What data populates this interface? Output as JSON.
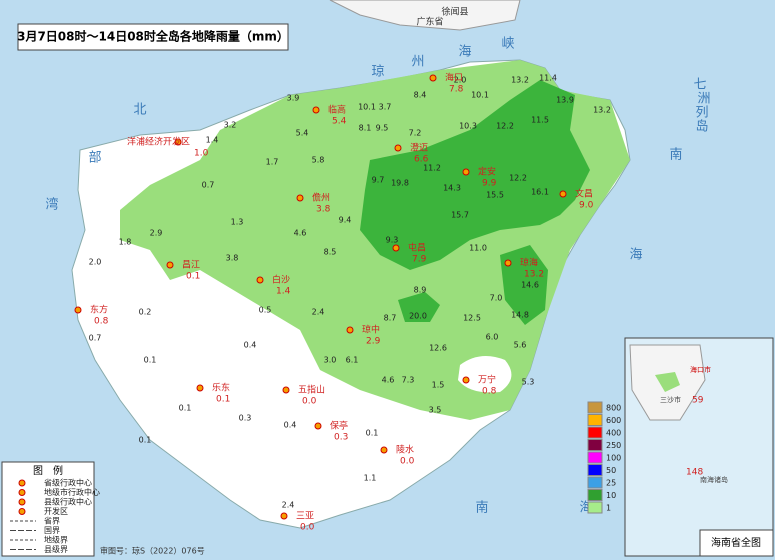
{
  "title": "3月7日08时～14日08时全岛各地降雨量（mm）",
  "top_labels": [
    "徐闻县",
    "广东省"
  ],
  "seas": [
    "北",
    "部",
    "湾",
    "琼",
    "州",
    "海",
    "峡",
    "南",
    "海",
    "南",
    "海",
    "七",
    "洲",
    "列",
    "岛"
  ],
  "cities": [
    {
      "name": "海口",
      "value": "7.8"
    },
    {
      "name": "临高",
      "value": "5.4"
    },
    {
      "name": "洋浦经济开发区",
      "value": "1.0"
    },
    {
      "name": "澄迈",
      "value": "6.6"
    },
    {
      "name": "定安",
      "value": "9.9"
    },
    {
      "name": "文昌",
      "value": "9.0"
    },
    {
      "name": "儋州",
      "value": "3.8"
    },
    {
      "name": "屯昌",
      "value": "7.9"
    },
    {
      "name": "琼海",
      "value": "13.2"
    },
    {
      "name": "昌江",
      "value": "0.1"
    },
    {
      "name": "白沙",
      "value": "1.4"
    },
    {
      "name": "东方",
      "value": "0.8"
    },
    {
      "name": "琼中",
      "value": "2.9"
    },
    {
      "name": "乐东",
      "value": "0.1"
    },
    {
      "name": "五指山",
      "value": "0.0"
    },
    {
      "name": "保亭",
      "value": "0.3"
    },
    {
      "name": "万宁",
      "value": "0.8"
    },
    {
      "name": "陵水",
      "value": "0.0"
    },
    {
      "name": "三亚",
      "value": "0.0"
    }
  ],
  "stations": [
    "3.9",
    "10.1",
    "3.7",
    "8.4",
    "2.0",
    "10.1",
    "13.2",
    "11.4",
    "3.2",
    "5.4",
    "8.1",
    "9.5",
    "7.2",
    "10.3",
    "12.2",
    "11.5",
    "13.9",
    "13.2",
    "1.4",
    "1.7",
    "5.8",
    "9.7",
    "19.8",
    "11.2",
    "14.3",
    "15.5",
    "12.2",
    "16.1",
    "0.7",
    "1.3",
    "4.6",
    "9.4",
    "9.3",
    "15.7",
    "11.0",
    "1.8",
    "2.9",
    "2.0",
    "3.8",
    "8.5",
    "8.9",
    "20.0",
    "12.5",
    "8.7",
    "7.0",
    "14.6",
    "14.8",
    "0.2",
    "0.5",
    "2.4",
    "12.6",
    "6.0",
    "5.6",
    "0.7",
    "0.1",
    "0.4",
    "3.0",
    "6.1",
    "4.6",
    "7.3",
    "1.5",
    "5.3",
    "3.5",
    "0.1",
    "0.1",
    "0.3",
    "0.4",
    "0.1",
    "1.1",
    "2.4"
  ],
  "rain_scale": [
    {
      "value": 800,
      "color": "#c8963c"
    },
    {
      "value": 600,
      "color": "#ffb400"
    },
    {
      "value": 400,
      "color": "#ff0000"
    },
    {
      "value": 250,
      "color": "#800040"
    },
    {
      "value": 100,
      "color": "#ff00ff"
    },
    {
      "value": 50,
      "color": "#0000ff"
    },
    {
      "value": 25,
      "color": "#3ca0e6"
    },
    {
      "value": 10,
      "color": "#30a030"
    },
    {
      "value": 1,
      "color": "#a6ec8a"
    }
  ],
  "legend": {
    "title": "图　例",
    "items": [
      "省级行政中心",
      "地级市行政中心",
      "县级行政中心",
      "开发区",
      "省界",
      "国界",
      "地级界",
      "县级界"
    ]
  },
  "approval": "审图号：琼S（2022）076号",
  "inset": {
    "title": "海南省全图",
    "labels": [
      "海口市",
      "三沙市",
      "南海诸岛"
    ],
    "numbers": [
      "59",
      "148"
    ]
  }
}
